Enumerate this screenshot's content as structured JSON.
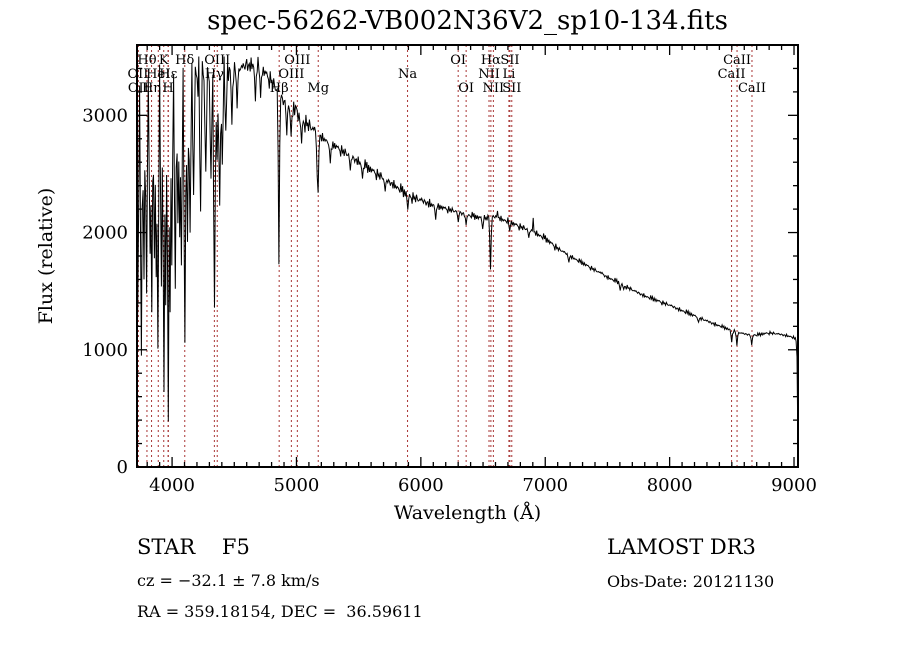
{
  "title": "spec-56262-VB002N36V2_sp10-134.fits",
  "annotations": {
    "class_label": "STAR    F5",
    "cz": "cz = −32.1 ± 7.8 km/s",
    "radec": "RA = 359.18154, DEC =  36.59611",
    "survey": "LAMOST DR3",
    "obs_date": "Obs-Date: 20121130"
  },
  "chart_data": {
    "type": "line",
    "title": "spec-56262-VB002N36V2_sp10-134.fits",
    "xlabel": "Wavelength (Å)",
    "ylabel": "Flux (relative)",
    "xlim": [
      3718,
      9032
    ],
    "ylim": [
      0,
      3600
    ],
    "x_major_ticks": [
      4000,
      5000,
      6000,
      7000,
      8000,
      9000
    ],
    "y_major_ticks": [
      0,
      1000,
      2000,
      3000
    ],
    "x_minor_step": 100,
    "y_minor_step": 200,
    "grid": false,
    "legend": "none",
    "line_color": "#000000",
    "marker_line_color": "#a83434",
    "spectral_line_markers": [
      {
        "label": "Hθ",
        "wavelength": 3798,
        "row": 1
      },
      {
        "label": "K",
        "wavelength": 3933,
        "row": 1
      },
      {
        "label": "Hδ",
        "wavelength": 4102,
        "row": 1
      },
      {
        "label": "OIII",
        "wavelength": 4363,
        "row": 1
      },
      {
        "label": "OIII",
        "wavelength": 5007,
        "row": 1
      },
      {
        "label": "OI",
        "wavelength": 6300,
        "row": 1
      },
      {
        "label": "Hα",
        "wavelength": 6563,
        "row": 1
      },
      {
        "label": "SII",
        "wavelength": 6716,
        "row": 1
      },
      {
        "label": "CaII",
        "wavelength": 8542,
        "row": 1
      },
      {
        "label": "OII",
        "wavelength": 3726,
        "row": 2
      },
      {
        "label": "HeI",
        "wavelength": 3889,
        "row": 2
      },
      {
        "label": "Hε",
        "wavelength": 3970,
        "row": 2
      },
      {
        "label": "Hγ",
        "wavelength": 4340,
        "row": 2
      },
      {
        "label": "OIII",
        "wavelength": 4959,
        "row": 2
      },
      {
        "label": "Na",
        "wavelength": 5893,
        "row": 2
      },
      {
        "label": "NII",
        "wavelength": 6548,
        "row": 2
      },
      {
        "label": "Li",
        "wavelength": 6708,
        "row": 2
      },
      {
        "label": "CaII",
        "wavelength": 8498,
        "row": 2
      },
      {
        "label": "OII",
        "wavelength": 3729,
        "row": 3
      },
      {
        "label": "Hη",
        "wavelength": 3835,
        "row": 3
      },
      {
        "label": "H",
        "wavelength": 3968,
        "row": 3
      },
      {
        "label": "Hβ",
        "wavelength": 4861,
        "row": 3
      },
      {
        "label": "Mg",
        "wavelength": 5175,
        "row": 3
      },
      {
        "label": "OI",
        "wavelength": 6364,
        "row": 3
      },
      {
        "label": "NII",
        "wavelength": 6583,
        "row": 3
      },
      {
        "label": "SII",
        "wavelength": 6731,
        "row": 3
      },
      {
        "label": "CaII",
        "wavelength": 8662,
        "row": 3
      }
    ],
    "spectrum": {
      "sample_step": 7,
      "continuum_points": [
        [
          3718,
          2400
        ],
        [
          3735,
          3230
        ],
        [
          3780,
          3300
        ],
        [
          3850,
          3360
        ],
        [
          3950,
          3400
        ],
        [
          4050,
          3400
        ],
        [
          4150,
          3370
        ],
        [
          4250,
          3345
        ],
        [
          4350,
          3335
        ],
        [
          4450,
          3365
        ],
        [
          4550,
          3405
        ],
        [
          4650,
          3435
        ],
        [
          4720,
          3395
        ],
        [
          4800,
          3295
        ],
        [
          4861,
          3180
        ],
        [
          4900,
          3120
        ],
        [
          5000,
          3005
        ],
        [
          5100,
          2915
        ],
        [
          5200,
          2815
        ],
        [
          5300,
          2745
        ],
        [
          5400,
          2675
        ],
        [
          5500,
          2605
        ],
        [
          5600,
          2535
        ],
        [
          5700,
          2465
        ],
        [
          5800,
          2395
        ],
        [
          5900,
          2315
        ],
        [
          6000,
          2275
        ],
        [
          6100,
          2235
        ],
        [
          6200,
          2205
        ],
        [
          6300,
          2175
        ],
        [
          6400,
          2145
        ],
        [
          6500,
          2120
        ],
        [
          6600,
          2135
        ],
        [
          6700,
          2095
        ],
        [
          6800,
          2050
        ],
        [
          6900,
          2010
        ],
        [
          7000,
          1950
        ],
        [
          7100,
          1865
        ],
        [
          7200,
          1800
        ],
        [
          7300,
          1740
        ],
        [
          7400,
          1680
        ],
        [
          7500,
          1620
        ],
        [
          7600,
          1570
        ],
        [
          7700,
          1510
        ],
        [
          7800,
          1460
        ],
        [
          7900,
          1420
        ],
        [
          8000,
          1380
        ],
        [
          8100,
          1335
        ],
        [
          8200,
          1290
        ],
        [
          8300,
          1245
        ],
        [
          8400,
          1205
        ],
        [
          8500,
          1165
        ],
        [
          8600,
          1135
        ],
        [
          8700,
          1125
        ],
        [
          8800,
          1145
        ],
        [
          8900,
          1130
        ],
        [
          8980,
          1112
        ],
        [
          9018,
          1085
        ],
        [
          9026,
          880
        ],
        [
          9032,
          40
        ]
      ],
      "absorption_lines": [
        [
          3721,
          870
        ],
        [
          3728,
          1500
        ],
        [
          3752,
          950
        ],
        [
          3775,
          1600
        ],
        [
          3798,
          1480
        ],
        [
          3820,
          1820
        ],
        [
          3835,
          1320
        ],
        [
          3855,
          1780
        ],
        [
          3869,
          1620
        ],
        [
          3889,
          1010
        ],
        [
          3912,
          1540
        ],
        [
          3933,
          640
        ],
        [
          3950,
          1380
        ],
        [
          3969,
          390
        ],
        [
          3983,
          1320
        ],
        [
          3995,
          1720
        ],
        [
          4026,
          1520
        ],
        [
          4047,
          2080
        ],
        [
          4063,
          1960
        ],
        [
          4077,
          1720
        ],
        [
          4102,
          1060
        ],
        [
          4121,
          1920
        ],
        [
          4144,
          2000
        ],
        [
          4172,
          2320
        ],
        [
          4226,
          2180
        ],
        [
          4272,
          2520
        ],
        [
          4310,
          2460
        ],
        [
          4340,
          1360
        ],
        [
          4363,
          2620
        ],
        [
          4383,
          2230
        ],
        [
          4404,
          2580
        ],
        [
          4435,
          2870
        ],
        [
          4481,
          2920
        ],
        [
          4520,
          3060
        ],
        [
          4668,
          3120
        ],
        [
          4713,
          3150
        ],
        [
          4861,
          1730
        ],
        [
          4920,
          2830
        ],
        [
          4957,
          2820
        ],
        [
          5041,
          2760
        ],
        [
          5168,
          2480
        ],
        [
          5175,
          2340
        ],
        [
          5270,
          2590
        ],
        [
          5430,
          2530
        ],
        [
          5528,
          2460
        ],
        [
          5711,
          2350
        ],
        [
          5893,
          2195
        ],
        [
          6122,
          2110
        ],
        [
          6300,
          2090
        ],
        [
          6363,
          2065
        ],
        [
          6495,
          2030
        ],
        [
          6563,
          1685
        ],
        [
          6717,
          2015
        ],
        [
          6870,
          1955
        ],
        [
          7190,
          1745
        ],
        [
          7605,
          1505
        ],
        [
          7632,
          1515
        ],
        [
          8230,
          1235
        ],
        [
          8498,
          1065
        ],
        [
          8542,
          1035
        ],
        [
          8662,
          1040
        ]
      ],
      "emission_spikes": [
        [
          4602,
          3480
        ],
        [
          5002,
          3070
        ],
        [
          6618,
          2185
        ],
        [
          6902,
          2125
        ],
        [
          7455,
          1660
        ]
      ],
      "noise_pattern": [
        0.32,
        -0.54,
        0.81,
        -0.22,
        -0.95,
        0.58,
        0.12,
        -0.74,
        0.92,
        -0.38,
        0.45,
        -1.0,
        0.68,
        -0.48,
        0.25,
        -0.82,
        1.0,
        -0.12,
        0.52,
        -0.65,
        0.18,
        -0.35,
        0.78,
        -0.88,
        0.42,
        -0.18,
        0.62,
        -0.58,
        0.3,
        -0.92,
        0.85,
        -0.28,
        0.15,
        -0.7,
        0.55,
        -0.44,
        0.05,
        -0.6,
        0.73,
        -0.33,
        0.48
      ],
      "noise_regions": [
        [
          3718,
          4480,
          165
        ],
        [
          4480,
          5150,
          75
        ],
        [
          5150,
          6100,
          48
        ],
        [
          6100,
          7100,
          30
        ],
        [
          7100,
          8400,
          20
        ],
        [
          8400,
          9040,
          14
        ]
      ]
    }
  }
}
